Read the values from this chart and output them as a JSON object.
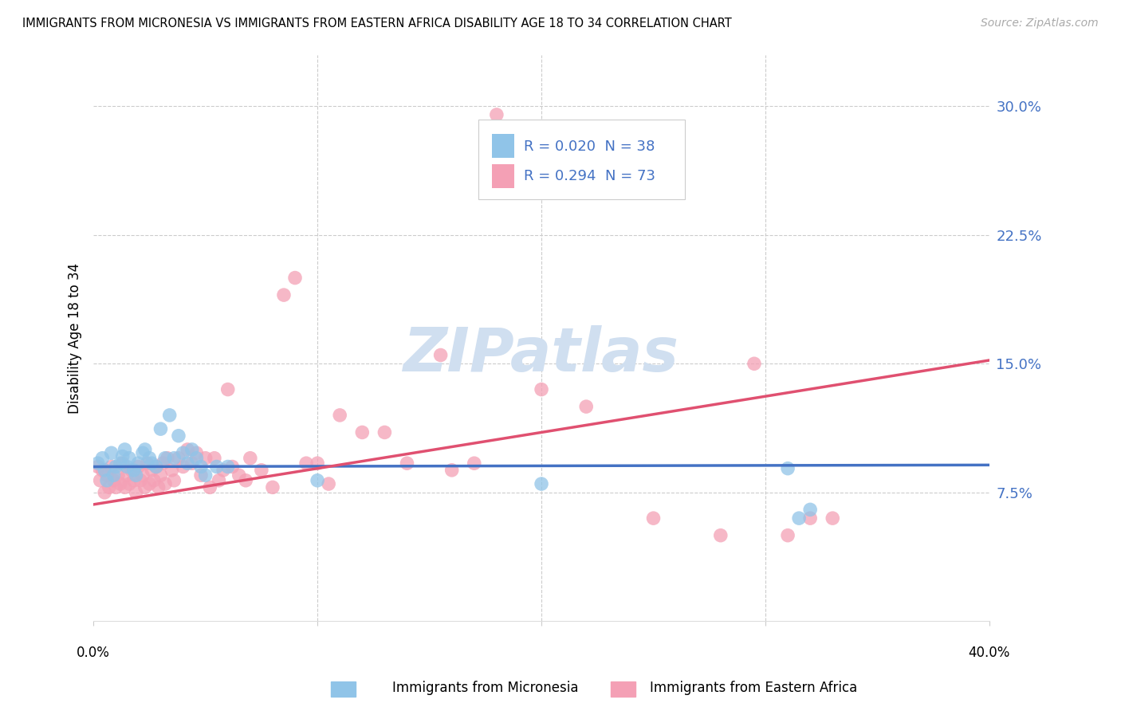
{
  "title": "IMMIGRANTS FROM MICRONESIA VS IMMIGRANTS FROM EASTERN AFRICA DISABILITY AGE 18 TO 34 CORRELATION CHART",
  "source": "Source: ZipAtlas.com",
  "ytick_vals": [
    0.075,
    0.15,
    0.225,
    0.3
  ],
  "ytick_labels": [
    "7.5%",
    "15.0%",
    "22.5%",
    "30.0%"
  ],
  "xlim": [
    0.0,
    0.4
  ],
  "ylim": [
    0.0,
    0.33
  ],
  "legend_label1": "Immigrants from Micronesia",
  "legend_label2": "Immigrants from Eastern Africa",
  "R1": "0.020",
  "N1": "38",
  "R2": "0.294",
  "N2": "73",
  "color_blue": "#90c4e8",
  "color_pink": "#f4a0b5",
  "color_blue_line": "#4472c4",
  "color_pink_line": "#e05070",
  "color_blue_text": "#4472c4",
  "watermark_color": "#d0dff0",
  "blue_line_x0": 0.0,
  "blue_line_y0": 0.09,
  "blue_line_x1": 0.4,
  "blue_line_y1": 0.091,
  "pink_line_x0": 0.0,
  "pink_line_y0": 0.068,
  "pink_line_x1": 0.4,
  "pink_line_y1": 0.152,
  "blue_scatter_x": [
    0.002,
    0.004,
    0.005,
    0.006,
    0.008,
    0.009,
    0.01,
    0.012,
    0.013,
    0.014,
    0.015,
    0.016,
    0.018,
    0.019,
    0.02,
    0.022,
    0.023,
    0.025,
    0.026,
    0.028,
    0.03,
    0.032,
    0.034,
    0.036,
    0.038,
    0.04,
    0.042,
    0.044,
    0.046,
    0.048,
    0.05,
    0.055,
    0.06,
    0.1,
    0.2,
    0.31,
    0.315,
    0.32
  ],
  "blue_scatter_y": [
    0.092,
    0.095,
    0.088,
    0.082,
    0.098,
    0.085,
    0.09,
    0.092,
    0.096,
    0.1,
    0.09,
    0.095,
    0.088,
    0.085,
    0.092,
    0.098,
    0.1,
    0.095,
    0.092,
    0.09,
    0.112,
    0.095,
    0.12,
    0.095,
    0.108,
    0.098,
    0.092,
    0.1,
    0.095,
    0.09,
    0.085,
    0.09,
    0.09,
    0.082,
    0.08,
    0.089,
    0.06,
    0.065
  ],
  "pink_scatter_x": [
    0.002,
    0.003,
    0.004,
    0.005,
    0.006,
    0.007,
    0.008,
    0.009,
    0.01,
    0.011,
    0.012,
    0.013,
    0.014,
    0.015,
    0.016,
    0.017,
    0.018,
    0.019,
    0.02,
    0.021,
    0.022,
    0.023,
    0.024,
    0.025,
    0.026,
    0.027,
    0.028,
    0.029,
    0.03,
    0.031,
    0.032,
    0.033,
    0.035,
    0.036,
    0.038,
    0.04,
    0.042,
    0.044,
    0.046,
    0.048,
    0.05,
    0.052,
    0.054,
    0.056,
    0.058,
    0.06,
    0.062,
    0.065,
    0.068,
    0.07,
    0.075,
    0.08,
    0.085,
    0.09,
    0.095,
    0.1,
    0.105,
    0.11,
    0.12,
    0.13,
    0.14,
    0.155,
    0.16,
    0.17,
    0.18,
    0.2,
    0.22,
    0.25,
    0.28,
    0.295,
    0.31,
    0.32,
    0.33
  ],
  "pink_scatter_y": [
    0.09,
    0.082,
    0.088,
    0.075,
    0.085,
    0.078,
    0.09,
    0.082,
    0.078,
    0.085,
    0.08,
    0.092,
    0.078,
    0.085,
    0.08,
    0.088,
    0.082,
    0.075,
    0.09,
    0.082,
    0.085,
    0.078,
    0.092,
    0.08,
    0.088,
    0.082,
    0.09,
    0.078,
    0.085,
    0.092,
    0.08,
    0.095,
    0.088,
    0.082,
    0.095,
    0.09,
    0.1,
    0.092,
    0.098,
    0.085,
    0.095,
    0.078,
    0.095,
    0.082,
    0.088,
    0.135,
    0.09,
    0.085,
    0.082,
    0.095,
    0.088,
    0.078,
    0.19,
    0.2,
    0.092,
    0.092,
    0.08,
    0.12,
    0.11,
    0.11,
    0.092,
    0.155,
    0.088,
    0.092,
    0.295,
    0.135,
    0.125,
    0.06,
    0.05,
    0.15,
    0.05,
    0.06,
    0.06
  ]
}
